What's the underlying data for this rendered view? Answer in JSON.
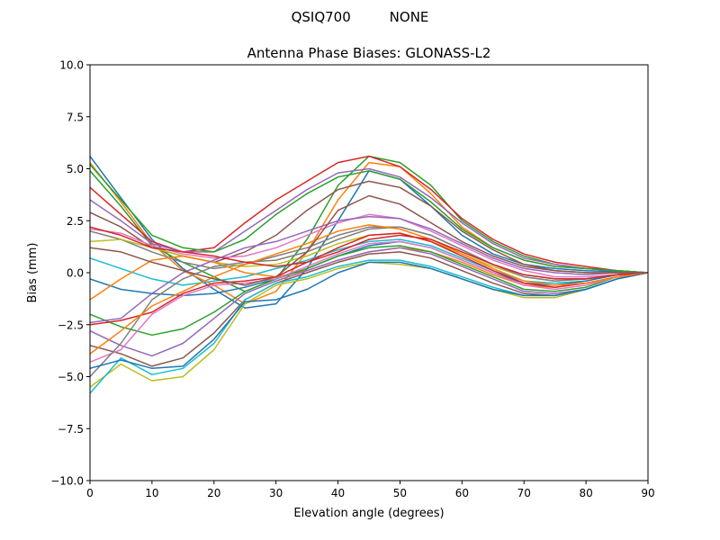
{
  "chart_data": {
    "type": "line",
    "suptitle": "QSIQ700         NONE",
    "title": "Antenna Phase Biases: GLONASS-L2",
    "xlabel": "Elevation angle (degrees)",
    "ylabel": "Bias (mm)",
    "xlim": [
      0,
      90
    ],
    "ylim": [
      -10,
      10
    ],
    "xticks": [
      0,
      10,
      20,
      30,
      40,
      50,
      60,
      70,
      80,
      90
    ],
    "yticks": [
      -10.0,
      -7.5,
      -5.0,
      -2.5,
      0.0,
      2.5,
      5.0,
      7.5,
      10.0
    ],
    "ytick_labels": [
      "−10.0",
      "−7.5",
      "−5.0",
      "−2.5",
      "0.0",
      "2.5",
      "5.0",
      "7.5",
      "10.0"
    ],
    "grid": false,
    "colors": [
      "#1f77b4",
      "#ff7f0e",
      "#2ca02c",
      "#d62728",
      "#9467bd",
      "#8c564b",
      "#e377c2",
      "#7f7f7f",
      "#bcbd22",
      "#17becf"
    ],
    "x": [
      0,
      5,
      10,
      15,
      20,
      25,
      30,
      35,
      40,
      45,
      50,
      55,
      60,
      65,
      70,
      75,
      80,
      85,
      90
    ],
    "series": [
      {
        "values": [
          5.6,
          3.6,
          1.6,
          0.2,
          -0.8,
          -1.7,
          -1.5,
          0.2,
          2.5,
          4.9,
          4.5,
          3.2,
          1.8,
          0.9,
          0.4,
          0.2,
          0.1,
          0.05,
          0
        ]
      },
      {
        "values": [
          5.3,
          3.4,
          1.4,
          0.1,
          -0.6,
          -1.5,
          -0.9,
          1.0,
          3.5,
          5.3,
          5.1,
          3.8,
          2.2,
          1.2,
          0.6,
          0.3,
          0.2,
          0.1,
          0
        ]
      },
      {
        "values": [
          4.9,
          3.2,
          1.3,
          0.5,
          -0.2,
          -0.9,
          -0.3,
          1.6,
          4.2,
          5.6,
          5.3,
          4.2,
          2.5,
          1.5,
          0.8,
          0.4,
          0.2,
          0.1,
          0
        ]
      },
      {
        "values": [
          4.1,
          2.8,
          1.5,
          1.0,
          1.2,
          2.4,
          3.5,
          4.4,
          5.3,
          5.6,
          5.1,
          4.0,
          2.6,
          1.6,
          0.9,
          0.5,
          0.3,
          0.1,
          0
        ]
      },
      {
        "values": [
          3.5,
          2.5,
          1.4,
          1.0,
          1.0,
          2.0,
          3.0,
          4.0,
          4.8,
          5.0,
          4.6,
          3.6,
          2.4,
          1.4,
          0.7,
          0.4,
          0.2,
          0.1,
          0
        ]
      },
      {
        "values": [
          2.9,
          2.2,
          1.2,
          0.8,
          0.5,
          1.0,
          1.8,
          3.0,
          4.0,
          4.4,
          4.1,
          3.2,
          2.0,
          1.1,
          0.4,
          0.1,
          0.0,
          0.0,
          0
        ]
      },
      {
        "values": [
          2.1,
          1.9,
          1.3,
          0.9,
          0.7,
          0.8,
          1.2,
          1.8,
          2.4,
          2.8,
          2.6,
          2.0,
          1.3,
          0.6,
          0.1,
          -0.2,
          -0.2,
          -0.1,
          0
        ]
      },
      {
        "values": [
          2.0,
          1.6,
          1.0,
          0.5,
          0.2,
          0.4,
          0.8,
          1.2,
          1.8,
          2.2,
          2.2,
          1.8,
          1.1,
          0.4,
          -0.1,
          -0.3,
          -0.3,
          -0.1,
          0
        ]
      },
      {
        "values": [
          1.5,
          1.6,
          1.2,
          0.8,
          0.5,
          0.3,
          0.4,
          0.8,
          1.4,
          1.8,
          1.9,
          1.5,
          0.9,
          0.3,
          -0.2,
          -0.4,
          -0.3,
          -0.1,
          0
        ]
      },
      {
        "values": [
          0.7,
          0.2,
          -0.3,
          -0.6,
          -0.4,
          -0.2,
          0.2,
          0.6,
          1.1,
          1.5,
          1.6,
          1.3,
          0.7,
          0.1,
          -0.4,
          -0.5,
          -0.4,
          -0.1,
          0
        ]
      },
      {
        "values": [
          -0.3,
          -0.8,
          -1.0,
          -1.1,
          -1.0,
          -0.7,
          -0.3,
          0.2,
          0.8,
          1.3,
          1.5,
          1.2,
          0.6,
          0,
          -0.5,
          -0.6,
          -0.4,
          -0.1,
          0
        ]
      },
      {
        "values": [
          -1.3,
          -0.3,
          0.6,
          0.8,
          0.5,
          0,
          -0.2,
          0.1,
          0.6,
          1.0,
          1.2,
          1.0,
          0.5,
          -0.1,
          -0.6,
          -0.7,
          -0.5,
          -0.2,
          0
        ]
      },
      {
        "values": [
          -2.0,
          -2.6,
          -3.0,
          -2.7,
          -1.9,
          -0.9,
          -0.3,
          0.2,
          0.8,
          1.2,
          1.3,
          1.0,
          0.4,
          -0.2,
          -0.8,
          -0.9,
          -0.7,
          -0.2,
          0
        ]
      },
      {
        "values": [
          -2.5,
          -2.3,
          -1.9,
          -1.0,
          -0.5,
          -0.4,
          -0.2,
          0.5,
          1.2,
          1.8,
          1.9,
          1.5,
          0.8,
          0.1,
          -0.5,
          -0.7,
          -0.5,
          -0.2,
          0
        ]
      },
      {
        "values": [
          -2.8,
          -3.5,
          -4.0,
          -3.4,
          -2.2,
          -1.0,
          -0.4,
          0.1,
          0.6,
          1.0,
          1.2,
          0.9,
          0.3,
          -0.3,
          -0.9,
          -1.0,
          -0.8,
          -0.3,
          0
        ]
      },
      {
        "values": [
          -3.5,
          -3.9,
          -4.5,
          -4.1,
          -2.9,
          -1.3,
          -0.5,
          0.0,
          0.5,
          0.9,
          1.0,
          0.7,
          0.1,
          -0.5,
          -1.0,
          -1.1,
          -0.8,
          -0.3,
          0
        ]
      },
      {
        "values": [
          -4.3,
          -3.7,
          -2.0,
          -1.1,
          -0.6,
          -0.5,
          -0.3,
          0.3,
          0.9,
          1.4,
          1.5,
          1.2,
          0.6,
          0,
          -0.6,
          -0.8,
          -0.6,
          -0.2,
          0
        ]
      },
      {
        "values": [
          -5.0,
          -3.4,
          -1.3,
          -0.3,
          0.3,
          0.5,
          0.6,
          1.0,
          1.6,
          2.1,
          2.2,
          1.8,
          1.1,
          0.4,
          -0.2,
          -0.4,
          -0.3,
          -0.1,
          0
        ]
      },
      {
        "values": [
          -5.5,
          -4.4,
          -5.2,
          -5.0,
          -3.7,
          -1.5,
          -0.6,
          -0.3,
          0.2,
          0.5,
          0.4,
          0.2,
          -0.3,
          -0.8,
          -1.2,
          -1.2,
          -0.8,
          -0.3,
          0
        ]
      },
      {
        "values": [
          -5.8,
          -4.1,
          -4.9,
          -4.6,
          -3.4,
          -1.3,
          -0.5,
          -0.2,
          0.3,
          0.6,
          0.6,
          0.3,
          -0.2,
          -0.7,
          -1.1,
          -1.1,
          -0.8,
          -0.3,
          0
        ]
      },
      {
        "values": [
          -4.6,
          -4.2,
          -4.6,
          -4.5,
          -3.2,
          -1.4,
          -1.3,
          -0.8,
          0.0,
          0.5,
          0.5,
          0.2,
          -0.3,
          -0.8,
          -1.1,
          -1.1,
          -0.8,
          -0.3,
          0
        ]
      },
      {
        "values": [
          -3.9,
          -2.8,
          -1.6,
          -0.9,
          -0.2,
          0.4,
          0.9,
          1.4,
          2.0,
          2.3,
          2.1,
          1.6,
          0.9,
          0.2,
          -0.4,
          -0.6,
          -0.5,
          -0.2,
          0
        ]
      },
      {
        "values": [
          5.2,
          3.5,
          1.8,
          1.2,
          1.0,
          1.6,
          2.8,
          3.8,
          4.6,
          4.9,
          4.5,
          3.4,
          2.1,
          1.2,
          0.6,
          0.3,
          0.2,
          0.1,
          0
        ]
      },
      {
        "values": [
          2.2,
          1.8,
          1.2,
          1.0,
          0.8,
          0.5,
          0.3,
          0.5,
          1.0,
          1.6,
          1.8,
          1.6,
          1.0,
          0.4,
          -0.1,
          -0.3,
          -0.3,
          -0.1,
          0
        ]
      },
      {
        "values": [
          -2.4,
          -2.2,
          -1.0,
          0.0,
          0.6,
          1.2,
          1.5,
          2.0,
          2.5,
          2.7,
          2.6,
          2.1,
          1.4,
          0.7,
          0.2,
          0,
          -0.1,
          0,
          0
        ]
      },
      {
        "values": [
          1.2,
          1.0,
          0.5,
          0.1,
          -0.3,
          -0.6,
          -0.2,
          1.0,
          3.0,
          3.7,
          3.3,
          2.4,
          1.5,
          0.8,
          0.3,
          0.1,
          0,
          0,
          0
        ]
      }
    ]
  }
}
